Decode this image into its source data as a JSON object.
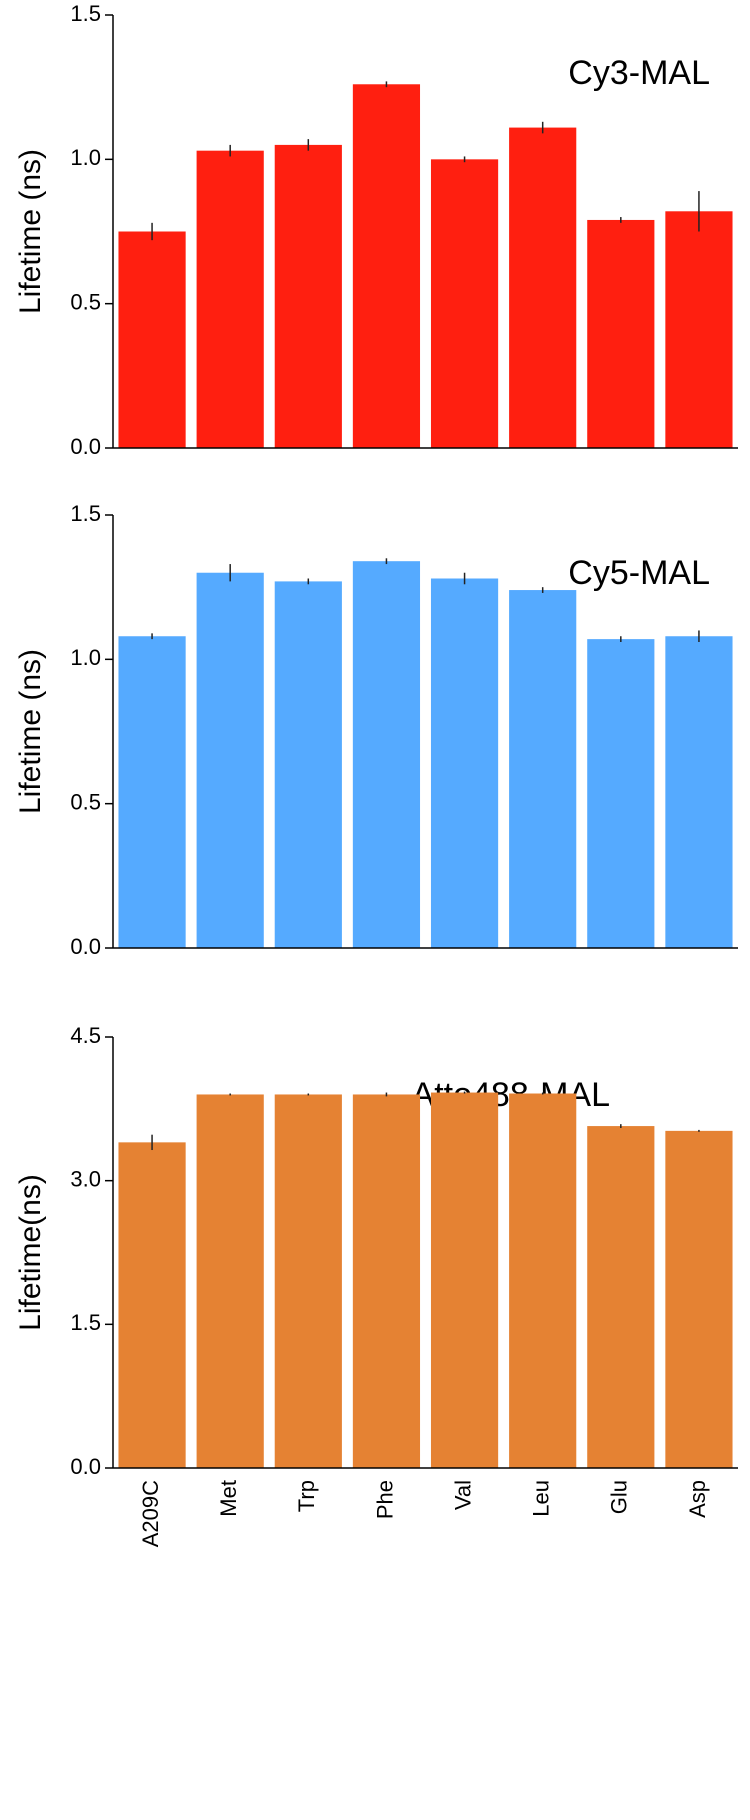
{
  "chart_data": [
    {
      "type": "bar",
      "title": "Cy3-MAL",
      "y_label": "Lifetime (ns)",
      "color": "#ff1f10",
      "values": [
        0.75,
        1.03,
        1.05,
        1.26,
        1.0,
        1.11,
        0.79,
        0.82
      ],
      "errors": [
        0.03,
        0.02,
        0.02,
        0.01,
        0.01,
        0.02,
        0.01,
        0.07
      ],
      "ylim": [
        0,
        1.5
      ],
      "yticks": [
        {
          "value": 0,
          "label": "0.0"
        },
        {
          "value": 0.5,
          "label": "0.5"
        },
        {
          "value": 1,
          "label": "1.0"
        },
        {
          "value": 1.5,
          "label": "1.5"
        }
      ]
    },
    {
      "type": "bar",
      "title": "Cy5-MAL",
      "y_label": "Lifetime (ns)",
      "color": "#55aaff",
      "values": [
        1.08,
        1.3,
        1.27,
        1.34,
        1.28,
        1.24,
        1.07,
        1.08
      ],
      "errors": [
        0.01,
        0.03,
        0.01,
        0.01,
        0.02,
        0.01,
        0.01,
        0.02
      ],
      "ylim": [
        0,
        1.5
      ],
      "yticks": [
        {
          "value": 0,
          "label": "0.0"
        },
        {
          "value": 0.5,
          "label": "0.5"
        },
        {
          "value": 1,
          "label": "1.0"
        },
        {
          "value": 1.5,
          "label": "1.5"
        }
      ]
    },
    {
      "type": "bar",
      "title": "Atto488-MAL",
      "y_label": "Lifetime(ns)",
      "color": "#e58233",
      "categories": [
        "A209C",
        "Met",
        "Trp",
        "Phe",
        "Val",
        "Leu",
        "Glu",
        "Asp"
      ],
      "values": [
        3.4,
        3.9,
        3.9,
        3.9,
        3.92,
        3.91,
        3.57,
        3.52
      ],
      "errors": [
        0.08,
        0.01,
        0.01,
        0.02,
        0.01,
        0.01,
        0.02,
        0.01
      ],
      "ylim": [
        0,
        4.5
      ],
      "yticks": [
        {
          "value": 0,
          "label": "0.0"
        },
        {
          "value": 1.5,
          "label": "1.5"
        },
        {
          "value": 3,
          "label": "3.0"
        },
        {
          "value": 4.5,
          "label": "4.5"
        }
      ]
    }
  ]
}
